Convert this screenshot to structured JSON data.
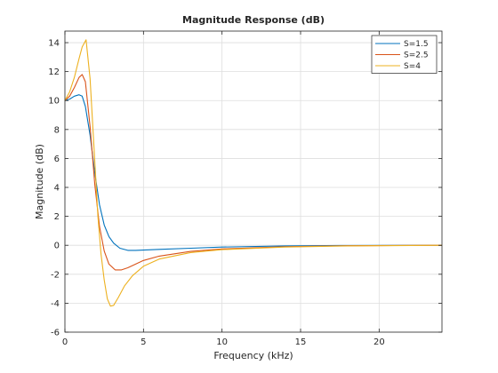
{
  "chart_data": {
    "type": "line",
    "title": "Magnitude Response (dB)",
    "xlabel": "Frequency (kHz)",
    "ylabel": "Magnitude (dB)",
    "xlim": [
      0,
      24
    ],
    "ylim": [
      -6,
      14.8
    ],
    "xticks": [
      0,
      5,
      10,
      15,
      20
    ],
    "yticks": [
      -6,
      -4,
      -2,
      0,
      2,
      4,
      6,
      8,
      10,
      12,
      14
    ],
    "grid": true,
    "legend_position": "top-right",
    "series": [
      {
        "name": "S=1.5",
        "color": "#0072BD",
        "x": [
          0,
          0.3,
          0.6,
          0.9,
          1.1,
          1.3,
          1.6,
          1.9,
          2.2,
          2.5,
          2.8,
          3.1,
          3.5,
          4.0,
          4.5,
          5,
          6,
          8,
          10,
          14,
          18,
          24
        ],
        "y": [
          10.0,
          10.1,
          10.3,
          10.4,
          10.3,
          9.6,
          7.6,
          5.0,
          2.8,
          1.4,
          0.6,
          0.15,
          -0.2,
          -0.35,
          -0.35,
          -0.33,
          -0.28,
          -0.2,
          -0.12,
          -0.04,
          -0.01,
          0
        ]
      },
      {
        "name": "S=2.5",
        "color": "#D95319",
        "x": [
          0,
          0.3,
          0.6,
          0.9,
          1.1,
          1.3,
          1.6,
          1.9,
          2.2,
          2.5,
          2.8,
          3.2,
          3.6,
          4.0,
          4.5,
          5,
          6,
          8,
          10,
          14,
          18,
          24
        ],
        "y": [
          10.0,
          10.3,
          10.9,
          11.6,
          11.8,
          11.3,
          8.2,
          4.2,
          1.3,
          -0.4,
          -1.3,
          -1.7,
          -1.7,
          -1.55,
          -1.3,
          -1.05,
          -0.75,
          -0.42,
          -0.25,
          -0.1,
          -0.03,
          0
        ]
      },
      {
        "name": "S=4",
        "color": "#EDB120",
        "x": [
          0,
          0.3,
          0.6,
          0.9,
          1.1,
          1.35,
          1.6,
          1.9,
          2.1,
          2.3,
          2.5,
          2.7,
          2.9,
          3.1,
          3.4,
          3.8,
          4.3,
          5,
          6,
          8,
          10,
          14,
          18,
          24
        ],
        "y": [
          10.0,
          10.6,
          11.6,
          12.9,
          13.7,
          14.2,
          11.5,
          5.8,
          2.0,
          -0.6,
          -2.4,
          -3.7,
          -4.2,
          -4.15,
          -3.6,
          -2.8,
          -2.1,
          -1.45,
          -0.95,
          -0.5,
          -0.3,
          -0.12,
          -0.04,
          0
        ]
      }
    ]
  }
}
